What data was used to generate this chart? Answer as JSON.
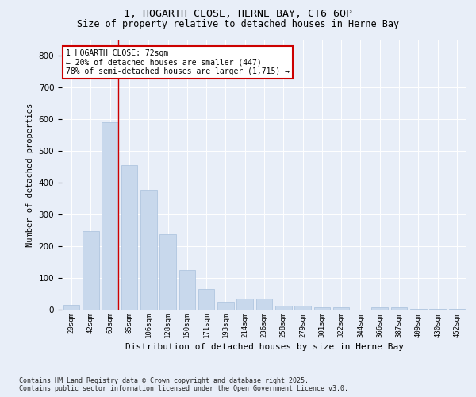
{
  "title_line1": "1, HOGARTH CLOSE, HERNE BAY, CT6 6QP",
  "title_line2": "Size of property relative to detached houses in Herne Bay",
  "xlabel": "Distribution of detached houses by size in Herne Bay",
  "ylabel": "Number of detached properties",
  "categories": [
    "20sqm",
    "42sqm",
    "63sqm",
    "85sqm",
    "106sqm",
    "128sqm",
    "150sqm",
    "171sqm",
    "193sqm",
    "214sqm",
    "236sqm",
    "258sqm",
    "279sqm",
    "301sqm",
    "322sqm",
    "344sqm",
    "366sqm",
    "387sqm",
    "409sqm",
    "430sqm",
    "452sqm"
  ],
  "values": [
    15,
    247,
    590,
    455,
    378,
    238,
    125,
    65,
    25,
    35,
    35,
    12,
    12,
    8,
    8,
    0,
    8,
    8,
    2,
    2,
    2
  ],
  "bar_color": "#c8d8ec",
  "bar_edgecolor": "#a8c0dc",
  "background_color": "#e8eef8",
  "plot_bg_color": "#e8eef8",
  "grid_color": "#ffffff",
  "vline_x_index": 2,
  "vline_color": "#cc0000",
  "annotation_text": "1 HOGARTH CLOSE: 72sqm\n← 20% of detached houses are smaller (447)\n78% of semi-detached houses are larger (1,715) →",
  "annotation_box_facecolor": "#ffffff",
  "annotation_box_edgecolor": "#cc0000",
  "ylim": [
    0,
    850
  ],
  "yticks": [
    0,
    100,
    200,
    300,
    400,
    500,
    600,
    700,
    800
  ],
  "footnote": "Contains HM Land Registry data © Crown copyright and database right 2025.\nContains public sector information licensed under the Open Government Licence v3.0."
}
